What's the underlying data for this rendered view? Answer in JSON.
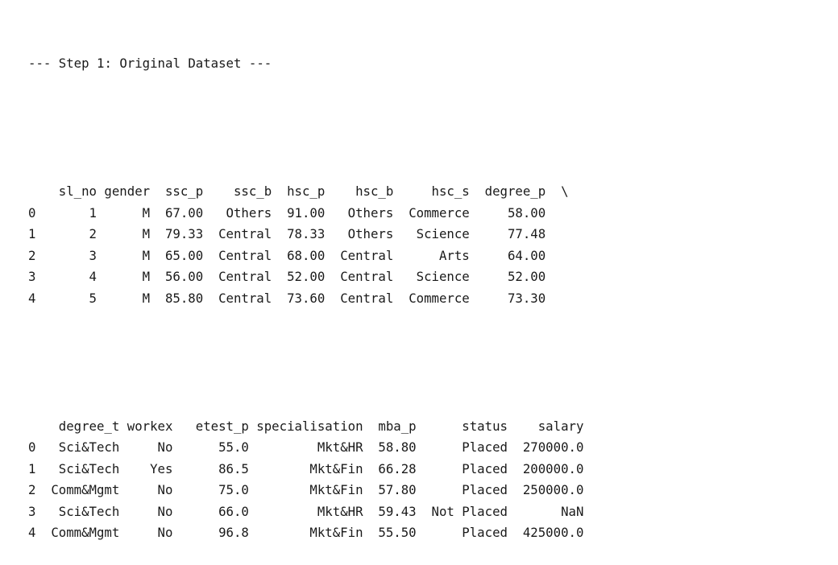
{
  "step_title": "--- Step 1: Original Dataset ---",
  "continuation_marker": "\\",
  "table1": {
    "columns": [
      "sl_no",
      "gender",
      "ssc_p",
      "ssc_b",
      "hsc_p",
      "hsc_b",
      "hsc_s",
      "degree_p"
    ],
    "rows": [
      {
        "index": "0",
        "cells": [
          "1",
          "M",
          "67.00",
          "Others",
          "91.00",
          "Others",
          "Commerce",
          "58.00"
        ]
      },
      {
        "index": "1",
        "cells": [
          "2",
          "M",
          "79.33",
          "Central",
          "78.33",
          "Others",
          "Science",
          "77.48"
        ]
      },
      {
        "index": "2",
        "cells": [
          "3",
          "M",
          "65.00",
          "Central",
          "68.00",
          "Central",
          "Arts",
          "64.00"
        ]
      },
      {
        "index": "3",
        "cells": [
          "4",
          "M",
          "56.00",
          "Central",
          "52.00",
          "Central",
          "Science",
          "52.00"
        ]
      },
      {
        "index": "4",
        "cells": [
          "5",
          "M",
          "85.80",
          "Central",
          "73.60",
          "Central",
          "Commerce",
          "73.30"
        ]
      }
    ]
  },
  "table2": {
    "columns": [
      "degree_t",
      "workex",
      "etest_p",
      "specialisation",
      "mba_p",
      "status",
      "salary"
    ],
    "rows": [
      {
        "index": "0",
        "cells": [
          "Sci&Tech",
          "No",
          "55.0",
          "Mkt&HR",
          "58.80",
          "Placed",
          "270000.0"
        ]
      },
      {
        "index": "1",
        "cells": [
          "Sci&Tech",
          "Yes",
          "86.5",
          "Mkt&Fin",
          "66.28",
          "Placed",
          "200000.0"
        ]
      },
      {
        "index": "2",
        "cells": [
          "Comm&Mgmt",
          "No",
          "75.0",
          "Mkt&Fin",
          "57.80",
          "Placed",
          "250000.0"
        ]
      },
      {
        "index": "3",
        "cells": [
          "Sci&Tech",
          "No",
          "66.0",
          "Mkt&HR",
          "59.43",
          "Not Placed",
          "NaN"
        ]
      },
      {
        "index": "4",
        "cells": [
          "Comm&Mgmt",
          "No",
          "96.8",
          "Mkt&Fin",
          "55.50",
          "Placed",
          "425000.0"
        ]
      }
    ]
  }
}
